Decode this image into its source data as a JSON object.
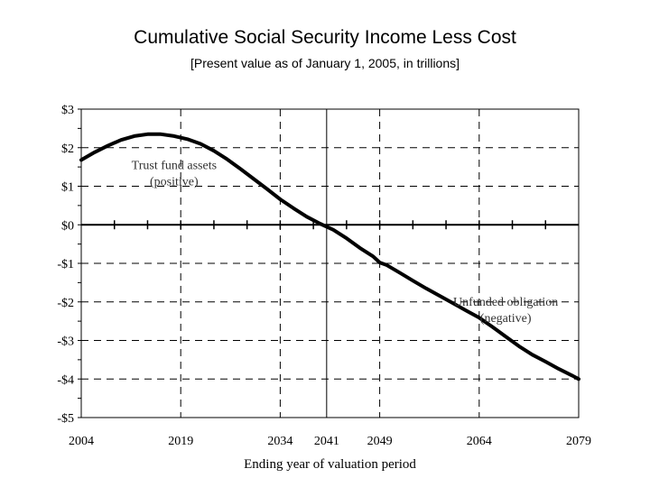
{
  "title": "Cumulative Social Security Income Less Cost",
  "subtitle": "[Present value as of January 1, 2005, in trillions]",
  "chart_data": {
    "type": "line",
    "title": "Cumulative Social Security Income Less Cost",
    "subtitle": "[Present value as of January 1, 2005, in trillions]",
    "xlabel": "Ending year of valuation period",
    "ylabel": "",
    "xlim": [
      2004,
      2079
    ],
    "ylim": [
      -5,
      3
    ],
    "x_ticks": [
      2004,
      2019,
      2034,
      2041,
      2049,
      2064,
      2079
    ],
    "y_ticks": [
      3,
      2,
      1,
      0,
      -1,
      -2,
      -3,
      -4,
      -5
    ],
    "y_tick_labels": [
      "$3",
      "$2",
      "$1",
      "$0",
      "-$1",
      "-$2",
      "-$3",
      "-$4",
      "-$5"
    ],
    "grid": "dashed",
    "annotations": [
      {
        "lines": [
          "Trust fund assets",
          "(positive)"
        ],
        "at": [
          2018,
          1.45
        ]
      },
      {
        "lines": [
          "Unfunded obligation",
          "(negative)"
        ],
        "at": [
          2068,
          -2.1
        ]
      }
    ],
    "series": [
      {
        "x": [
          2004,
          2006,
          2008,
          2010,
          2012,
          2014,
          2016,
          2018,
          2020,
          2022,
          2024,
          2026,
          2028,
          2030,
          2032,
          2034,
          2036,
          2038,
          2040,
          2041,
          2042,
          2044,
          2046,
          2048,
          2049,
          2050,
          2052,
          2054,
          2056,
          2058,
          2060,
          2062,
          2064,
          2066,
          2068,
          2070,
          2072,
          2074,
          2076,
          2078,
          2079
        ],
        "values": [
          1.68,
          1.88,
          2.05,
          2.2,
          2.3,
          2.35,
          2.35,
          2.3,
          2.22,
          2.1,
          1.92,
          1.7,
          1.45,
          1.19,
          0.93,
          0.66,
          0.43,
          0.21,
          0.03,
          -0.05,
          -0.13,
          -0.35,
          -0.6,
          -0.82,
          -0.98,
          -1.04,
          -1.24,
          -1.45,
          -1.65,
          -1.84,
          -2.03,
          -2.22,
          -2.41,
          -2.65,
          -2.9,
          -3.15,
          -3.37,
          -3.55,
          -3.74,
          -3.91,
          -4.0
        ]
      }
    ]
  }
}
